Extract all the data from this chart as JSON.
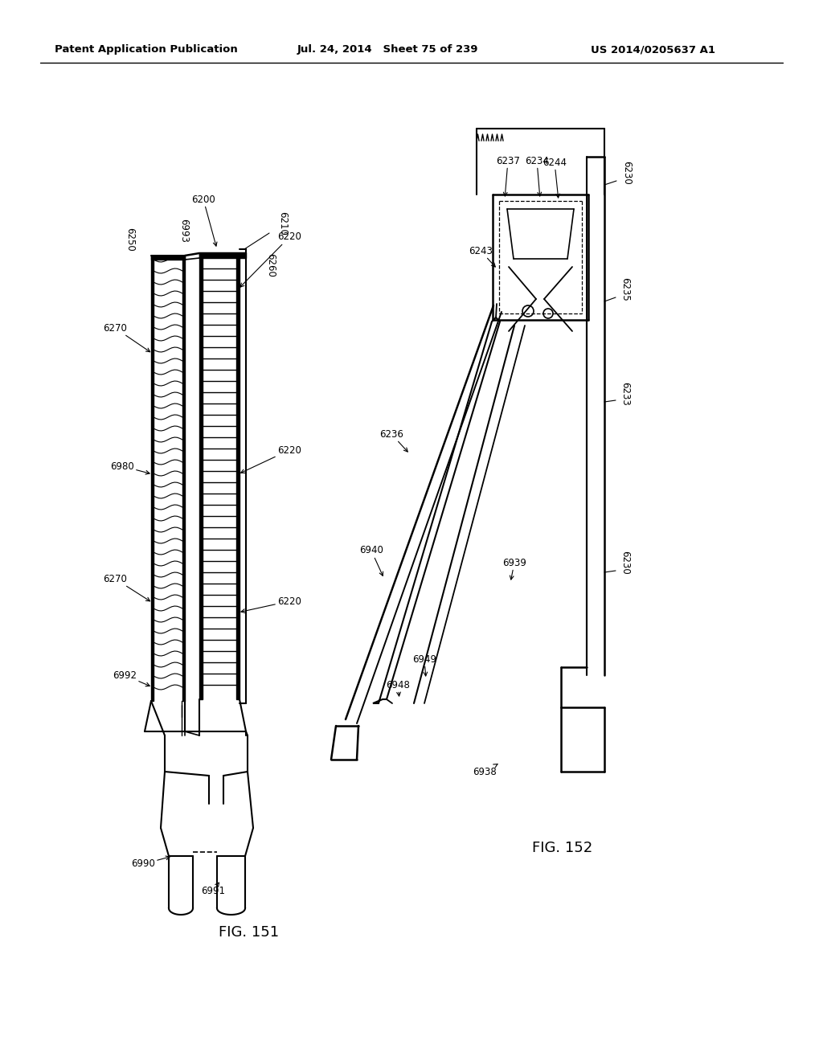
{
  "bg_color": "#ffffff",
  "header_left": "Patent Application Publication",
  "header_mid": "Jul. 24, 2014   Sheet 75 of 239",
  "header_right": "US 2014/0205637 A1",
  "fig151_label": "FIG. 151",
  "fig152_label": "FIG. 152"
}
